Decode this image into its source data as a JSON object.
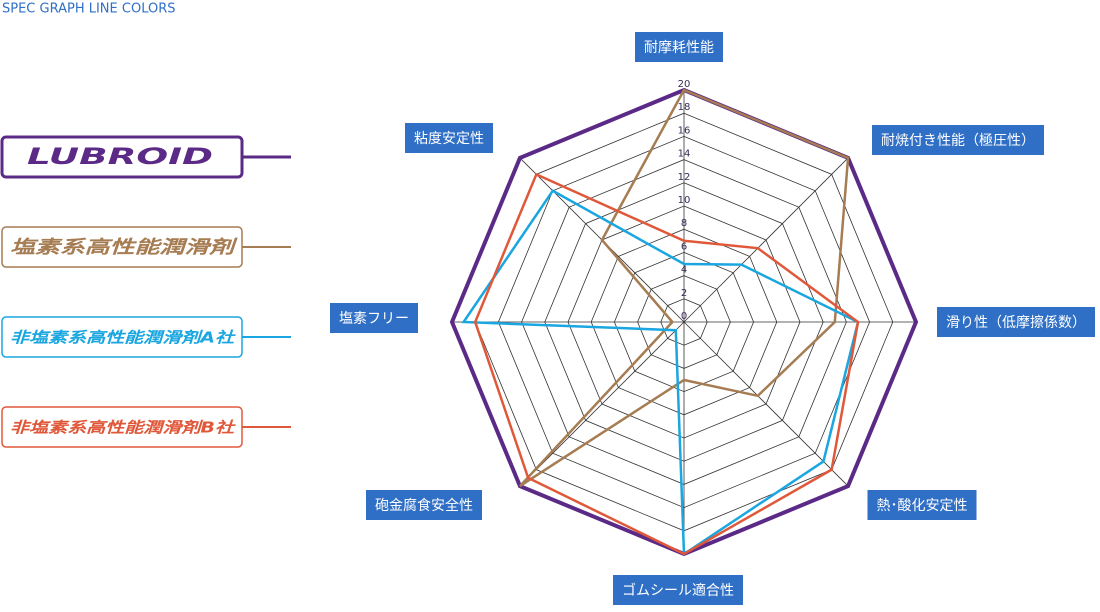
{
  "header": {
    "title": "SPEC GRAPH LINE COLORS"
  },
  "chart_data": {
    "type": "radar",
    "categories": [
      "耐摩耗性能",
      "耐焼付き性能（極圧性）",
      "滑り性（低摩擦係数）",
      "熱･酸化安定性",
      "ゴムシール適合性",
      "砲金腐食安全性",
      "塩素フリー",
      "粘度安定性"
    ],
    "ylim": [
      0,
      20
    ],
    "yticks": [
      0,
      2,
      4,
      6,
      8,
      10,
      12,
      14,
      16,
      18,
      20
    ],
    "grid": true,
    "series": [
      {
        "name": "LUBROID",
        "color": "#5b2a86",
        "values": [
          20,
          20,
          20,
          20,
          20,
          20,
          20,
          20
        ]
      },
      {
        "name": "塩素系高性能潤滑剤",
        "color": "#a67c52",
        "values": [
          20,
          20,
          13,
          9,
          5,
          20,
          1,
          10
        ]
      },
      {
        "name": "非塩素系高性能潤滑剤A社",
        "color": "#1aa6e0",
        "values": [
          5,
          7,
          15,
          17,
          20,
          1,
          19,
          16
        ]
      },
      {
        "name": "非塩素系高性能潤滑剤B社",
        "color": "#e0583a",
        "values": [
          7,
          9,
          15,
          18,
          20,
          19,
          18,
          18
        ]
      }
    ]
  }
}
